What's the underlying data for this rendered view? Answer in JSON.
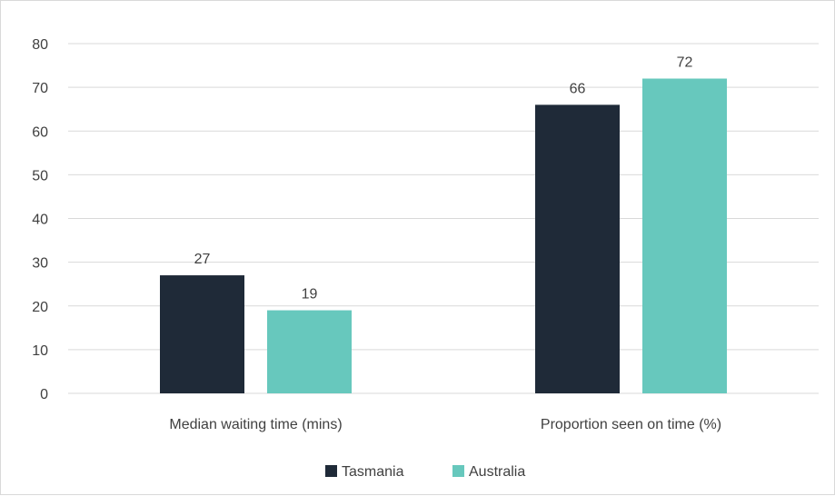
{
  "chart_data": {
    "type": "bar",
    "categories": [
      "Median waiting time (mins)",
      "Proportion seen on time (%)"
    ],
    "series": [
      {
        "name": "Tasmania",
        "values": [
          27,
          66
        ],
        "color": "#1f2a38"
      },
      {
        "name": "Australia",
        "values": [
          19,
          72
        ],
        "color": "#67c8bd"
      }
    ],
    "title": "",
    "xlabel": "",
    "ylabel": "",
    "ylim": [
      0,
      80
    ],
    "yticks": [
      0,
      10,
      20,
      30,
      40,
      50,
      60,
      70,
      80
    ],
    "grid": "horizontal",
    "legend": "bottom",
    "data_labels": true
  }
}
